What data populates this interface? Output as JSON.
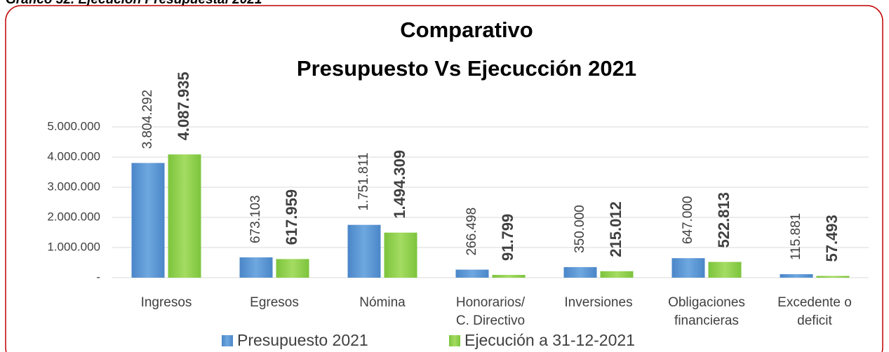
{
  "caption": "Gráfico 32. Ejecución Presupuestal 2021",
  "chart_data": {
    "type": "bar",
    "title": [
      "Comparativo",
      "Presupuesto Vs Ejecucción 2021"
    ],
    "categories": [
      "Ingresos",
      "Egresos",
      "Nómina",
      "Honorarios/ C. Directivo",
      "Inversiones",
      "Obligaciones financieras",
      "Excedente o deficit"
    ],
    "series": [
      {
        "name": "Presupuesto 2021",
        "color": "#5b9bd5",
        "values": [
          3804292,
          673103,
          1751811,
          266498,
          350000,
          647000,
          115881
        ],
        "value_labels": [
          "3.804.292",
          "673.103",
          "1.751.811",
          "266.498",
          "350.000",
          "647.000",
          "115.881"
        ]
      },
      {
        "name": "Ejecución a 31-12-2021",
        "color": "#92d050",
        "values": [
          4087935,
          617959,
          1494309,
          91799,
          215012,
          522813,
          57493
        ],
        "value_labels": [
          "4.087.935",
          "617.959",
          "1.494.309",
          "91.799",
          "215.012",
          "522.813",
          "57.493"
        ]
      }
    ],
    "ylim": [
      0,
      5000000
    ],
    "yticks": [
      {
        "value": 0,
        "label": "-"
      },
      {
        "value": 1000000,
        "label": "1.000.000"
      },
      {
        "value": 2000000,
        "label": "2.000.000"
      },
      {
        "value": 3000000,
        "label": "3.000.000"
      },
      {
        "value": 4000000,
        "label": "4.000.000"
      },
      {
        "value": 5000000,
        "label": "5.000.000"
      }
    ],
    "grid": true,
    "legend": "bottom"
  }
}
